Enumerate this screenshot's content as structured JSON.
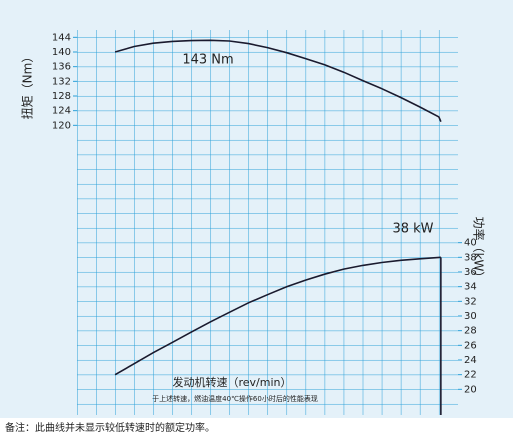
{
  "chart_data": {
    "type": "line",
    "x_label": "发动机转速（rev/min）",
    "note": "于上述转速，燃油温度40℃操作60小时后的性能表现",
    "y_label": "扭矩（Nm）",
    "y2_label": "功率（kW）",
    "footnote": "备注：此曲线并未显示较低转速时的额定功率。",
    "annotations": [
      "143 Nm",
      "38 kW"
    ],
    "xlim": [
      0,
      20
    ],
    "ylim": [
      41,
      146
    ],
    "yticks": [
      144,
      140,
      136,
      132,
      128,
      124,
      120
    ],
    "y2lim": [
      16.5,
      69
    ],
    "y2ticks": [
      40,
      38,
      36,
      34,
      32,
      30,
      28,
      26,
      24,
      22,
      20
    ],
    "grid": true,
    "series": [
      {
        "name": "扭矩",
        "color": "#1a1a2e",
        "axis": "y",
        "x": [
          2,
          3,
          4,
          5,
          6,
          7,
          8,
          9,
          10,
          11,
          12,
          13,
          14,
          15,
          16,
          17,
          18,
          19,
          19.1
        ],
        "values": [
          140,
          141.5,
          142.4,
          142.9,
          143.1,
          143.2,
          143,
          142.3,
          141.2,
          139.8,
          138.2,
          136.5,
          134.5,
          132.2,
          130,
          127.6,
          125,
          122.3,
          121
        ]
      },
      {
        "name": "功率",
        "color": "#1a1a2e",
        "axis": "y2",
        "x": [
          2,
          3,
          4,
          5,
          6,
          7,
          8,
          9,
          10,
          11,
          12,
          13,
          14,
          15,
          16,
          17,
          18,
          19.1
        ],
        "values": [
          22,
          23.5,
          25,
          26.4,
          27.8,
          29.2,
          30.5,
          31.8,
          32.9,
          34,
          34.9,
          35.7,
          36.4,
          36.9,
          37.3,
          37.6,
          37.8,
          38
        ]
      }
    ]
  }
}
